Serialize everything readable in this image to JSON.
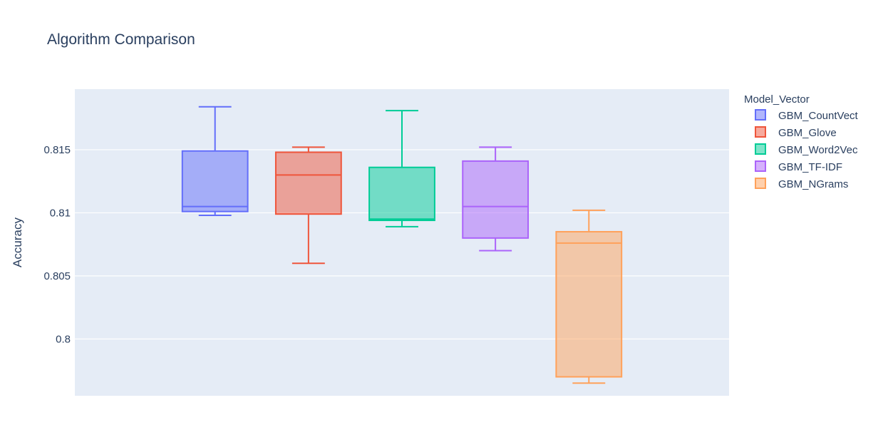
{
  "chart_data": {
    "type": "box",
    "title": "Algorithm Comparison",
    "xlabel": "",
    "ylabel": "Accuracy",
    "ylim": [
      0.7955,
      0.8198
    ],
    "yticks": [
      0.8,
      0.805,
      0.81,
      0.815
    ],
    "ytick_labels": [
      "0.8",
      "0.805",
      "0.81",
      "0.815"
    ],
    "grid": true,
    "legend": {
      "title": "Model_Vector",
      "placement": "top-right"
    },
    "series": [
      {
        "name": "GBM_CountVect",
        "color": "#636efa",
        "min": 0.8098,
        "q1": 0.8101,
        "median": 0.8105,
        "q3": 0.8149,
        "max": 0.8184
      },
      {
        "name": "GBM_Glove",
        "color": "#ef553b",
        "min": 0.806,
        "q1": 0.8099,
        "median": 0.813,
        "q3": 0.8148,
        "max": 0.8152
      },
      {
        "name": "GBM_Word2Vec",
        "color": "#00cc96",
        "min": 0.8089,
        "q1": 0.8094,
        "median": 0.8095,
        "q3": 0.8136,
        "max": 0.8181
      },
      {
        "name": "GBM_TF-IDF",
        "color": "#ab63fa",
        "min": 0.807,
        "q1": 0.808,
        "median": 0.8105,
        "q3": 0.8141,
        "max": 0.8152
      },
      {
        "name": "GBM_NGrams",
        "color": "#ffa15a",
        "min": 0.7965,
        "q1": 0.797,
        "median": 0.8076,
        "q3": 0.8085,
        "max": 0.8102
      }
    ]
  }
}
